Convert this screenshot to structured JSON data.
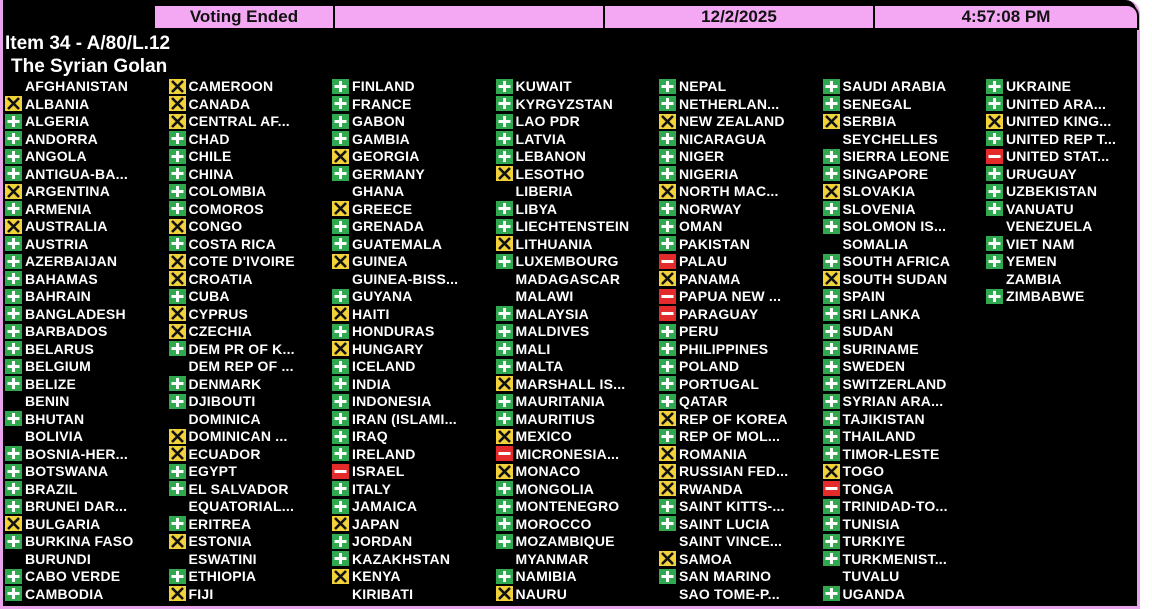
{
  "header": {
    "status": "Voting Ended",
    "date": "12/2/2025",
    "time": "4:57:08 PM"
  },
  "item": "Item 34 - A/80/L.12",
  "title": "The Syrian Golan",
  "columns": [
    [
      {
        "name": "AFGHANISTAN",
        "vote": null
      },
      {
        "name": "ALBANIA",
        "vote": "abstain"
      },
      {
        "name": "ALGERIA",
        "vote": "yes"
      },
      {
        "name": "ANDORRA",
        "vote": "yes"
      },
      {
        "name": "ANGOLA",
        "vote": "yes"
      },
      {
        "name": "ANTIGUA-BA...",
        "vote": "yes"
      },
      {
        "name": "ARGENTINA",
        "vote": "abstain"
      },
      {
        "name": "ARMENIA",
        "vote": "yes"
      },
      {
        "name": "AUSTRALIA",
        "vote": "abstain"
      },
      {
        "name": "AUSTRIA",
        "vote": "yes"
      },
      {
        "name": "AZERBAIJAN",
        "vote": "yes"
      },
      {
        "name": "BAHAMAS",
        "vote": "yes"
      },
      {
        "name": "BAHRAIN",
        "vote": "yes"
      },
      {
        "name": "BANGLADESH",
        "vote": "yes"
      },
      {
        "name": "BARBADOS",
        "vote": "yes"
      },
      {
        "name": "BELARUS",
        "vote": "yes"
      },
      {
        "name": "BELGIUM",
        "vote": "yes"
      },
      {
        "name": "BELIZE",
        "vote": "yes"
      },
      {
        "name": "BENIN",
        "vote": null
      },
      {
        "name": "BHUTAN",
        "vote": "yes"
      },
      {
        "name": "BOLIVIA",
        "vote": null
      },
      {
        "name": "BOSNIA-HER...",
        "vote": "yes"
      },
      {
        "name": "BOTSWANA",
        "vote": "yes"
      },
      {
        "name": "BRAZIL",
        "vote": "yes"
      },
      {
        "name": "BRUNEI DAR...",
        "vote": "yes"
      },
      {
        "name": "BULGARIA",
        "vote": "abstain"
      },
      {
        "name": "BURKINA FASO",
        "vote": "yes"
      },
      {
        "name": "BURUNDI",
        "vote": null
      },
      {
        "name": "CABO VERDE",
        "vote": "yes"
      },
      {
        "name": "CAMBODIA",
        "vote": "yes"
      }
    ],
    [
      {
        "name": "CAMEROON",
        "vote": "abstain"
      },
      {
        "name": "CANADA",
        "vote": "abstain"
      },
      {
        "name": "CENTRAL AF...",
        "vote": "abstain"
      },
      {
        "name": "CHAD",
        "vote": "yes"
      },
      {
        "name": "CHILE",
        "vote": "yes"
      },
      {
        "name": "CHINA",
        "vote": "yes"
      },
      {
        "name": "COLOMBIA",
        "vote": "yes"
      },
      {
        "name": "COMOROS",
        "vote": "yes"
      },
      {
        "name": "CONGO",
        "vote": "abstain"
      },
      {
        "name": "COSTA RICA",
        "vote": "yes"
      },
      {
        "name": "COTE D'IVOIRE",
        "vote": "abstain"
      },
      {
        "name": "CROATIA",
        "vote": "abstain"
      },
      {
        "name": "CUBA",
        "vote": "yes"
      },
      {
        "name": "CYPRUS",
        "vote": "abstain"
      },
      {
        "name": "CZECHIA",
        "vote": "abstain"
      },
      {
        "name": "DEM PR OF K...",
        "vote": "yes"
      },
      {
        "name": "DEM REP OF ...",
        "vote": null
      },
      {
        "name": "DENMARK",
        "vote": "yes"
      },
      {
        "name": "DJIBOUTI",
        "vote": "yes"
      },
      {
        "name": "DOMINICA",
        "vote": null
      },
      {
        "name": "DOMINICAN ...",
        "vote": "abstain"
      },
      {
        "name": "ECUADOR",
        "vote": "abstain"
      },
      {
        "name": "EGYPT",
        "vote": "yes"
      },
      {
        "name": "EL SALVADOR",
        "vote": "yes"
      },
      {
        "name": "EQUATORIAL...",
        "vote": null
      },
      {
        "name": "ERITREA",
        "vote": "yes"
      },
      {
        "name": "ESTONIA",
        "vote": "abstain"
      },
      {
        "name": "ESWATINI",
        "vote": null
      },
      {
        "name": "ETHIOPIA",
        "vote": "yes"
      },
      {
        "name": "FIJI",
        "vote": "abstain"
      }
    ],
    [
      {
        "name": "FINLAND",
        "vote": "yes"
      },
      {
        "name": "FRANCE",
        "vote": "yes"
      },
      {
        "name": "GABON",
        "vote": "yes"
      },
      {
        "name": "GAMBIA",
        "vote": "yes"
      },
      {
        "name": "GEORGIA",
        "vote": "abstain"
      },
      {
        "name": "GERMANY",
        "vote": "yes"
      },
      {
        "name": "GHANA",
        "vote": null
      },
      {
        "name": "GREECE",
        "vote": "abstain"
      },
      {
        "name": "GRENADA",
        "vote": "yes"
      },
      {
        "name": "GUATEMALA",
        "vote": "yes"
      },
      {
        "name": "GUINEA",
        "vote": "abstain"
      },
      {
        "name": "GUINEA-BISS...",
        "vote": null
      },
      {
        "name": "GUYANA",
        "vote": "yes"
      },
      {
        "name": "HAITI",
        "vote": "abstain"
      },
      {
        "name": "HONDURAS",
        "vote": "yes"
      },
      {
        "name": "HUNGARY",
        "vote": "abstain"
      },
      {
        "name": "ICELAND",
        "vote": "yes"
      },
      {
        "name": "INDIA",
        "vote": "yes"
      },
      {
        "name": "INDONESIA",
        "vote": "yes"
      },
      {
        "name": "IRAN (ISLAMI...",
        "vote": "yes"
      },
      {
        "name": "IRAQ",
        "vote": "yes"
      },
      {
        "name": "IRELAND",
        "vote": "yes"
      },
      {
        "name": "ISRAEL",
        "vote": "no"
      },
      {
        "name": "ITALY",
        "vote": "yes"
      },
      {
        "name": "JAMAICA",
        "vote": "yes"
      },
      {
        "name": "JAPAN",
        "vote": "abstain"
      },
      {
        "name": "JORDAN",
        "vote": "yes"
      },
      {
        "name": "KAZAKHSTAN",
        "vote": "yes"
      },
      {
        "name": "KENYA",
        "vote": "abstain"
      },
      {
        "name": "KIRIBATI",
        "vote": null
      }
    ],
    [
      {
        "name": "KUWAIT",
        "vote": "yes"
      },
      {
        "name": "KYRGYZSTAN",
        "vote": "yes"
      },
      {
        "name": "LAO PDR",
        "vote": "yes"
      },
      {
        "name": "LATVIA",
        "vote": "yes"
      },
      {
        "name": "LEBANON",
        "vote": "yes"
      },
      {
        "name": "LESOTHO",
        "vote": "abstain"
      },
      {
        "name": "LIBERIA",
        "vote": null
      },
      {
        "name": "LIBYA",
        "vote": "yes"
      },
      {
        "name": "LIECHTENSTEIN",
        "vote": "yes"
      },
      {
        "name": "LITHUANIA",
        "vote": "abstain"
      },
      {
        "name": "LUXEMBOURG",
        "vote": "yes"
      },
      {
        "name": "MADAGASCAR",
        "vote": null
      },
      {
        "name": "MALAWI",
        "vote": null
      },
      {
        "name": "MALAYSIA",
        "vote": "yes"
      },
      {
        "name": "MALDIVES",
        "vote": "yes"
      },
      {
        "name": "MALI",
        "vote": "yes"
      },
      {
        "name": "MALTA",
        "vote": "yes"
      },
      {
        "name": "MARSHALL IS...",
        "vote": "abstain"
      },
      {
        "name": "MAURITANIA",
        "vote": "yes"
      },
      {
        "name": "MAURITIUS",
        "vote": "yes"
      },
      {
        "name": "MEXICO",
        "vote": "abstain"
      },
      {
        "name": "MICRONESIA...",
        "vote": "no"
      },
      {
        "name": "MONACO",
        "vote": "abstain"
      },
      {
        "name": "MONGOLIA",
        "vote": "yes"
      },
      {
        "name": "MONTENEGRO",
        "vote": "yes"
      },
      {
        "name": "MOROCCO",
        "vote": "yes"
      },
      {
        "name": "MOZAMBIQUE",
        "vote": "yes"
      },
      {
        "name": "MYANMAR",
        "vote": null
      },
      {
        "name": "NAMIBIA",
        "vote": "yes"
      },
      {
        "name": "NAURU",
        "vote": "abstain"
      }
    ],
    [
      {
        "name": "NEPAL",
        "vote": "yes"
      },
      {
        "name": "NETHERLAN...",
        "vote": "yes"
      },
      {
        "name": "NEW ZEALAND",
        "vote": "abstain"
      },
      {
        "name": "NICARAGUA",
        "vote": "yes"
      },
      {
        "name": "NIGER",
        "vote": "yes"
      },
      {
        "name": "NIGERIA",
        "vote": "yes"
      },
      {
        "name": "NORTH MAC...",
        "vote": "abstain"
      },
      {
        "name": "NORWAY",
        "vote": "yes"
      },
      {
        "name": "OMAN",
        "vote": "yes"
      },
      {
        "name": "PAKISTAN",
        "vote": "yes"
      },
      {
        "name": "PALAU",
        "vote": "no"
      },
      {
        "name": "PANAMA",
        "vote": "abstain"
      },
      {
        "name": "PAPUA NEW ...",
        "vote": "no"
      },
      {
        "name": "PARAGUAY",
        "vote": "no"
      },
      {
        "name": "PERU",
        "vote": "yes"
      },
      {
        "name": "PHILIPPINES",
        "vote": "yes"
      },
      {
        "name": "POLAND",
        "vote": "yes"
      },
      {
        "name": "PORTUGAL",
        "vote": "yes"
      },
      {
        "name": "QATAR",
        "vote": "yes"
      },
      {
        "name": "REP OF KOREA",
        "vote": "abstain"
      },
      {
        "name": "REP OF MOL...",
        "vote": "yes"
      },
      {
        "name": "ROMANIA",
        "vote": "abstain"
      },
      {
        "name": "RUSSIAN FED...",
        "vote": "abstain"
      },
      {
        "name": "RWANDA",
        "vote": "abstain"
      },
      {
        "name": "SAINT KITTS-...",
        "vote": "yes"
      },
      {
        "name": "SAINT LUCIA",
        "vote": "yes"
      },
      {
        "name": "SAINT VINCE...",
        "vote": null
      },
      {
        "name": "SAMOA",
        "vote": "abstain"
      },
      {
        "name": "SAN MARINO",
        "vote": "yes"
      },
      {
        "name": "SAO TOME-P...",
        "vote": null
      }
    ],
    [
      {
        "name": "SAUDI ARABIA",
        "vote": "yes"
      },
      {
        "name": "SENEGAL",
        "vote": "yes"
      },
      {
        "name": "SERBIA",
        "vote": "abstain"
      },
      {
        "name": "SEYCHELLES",
        "vote": null
      },
      {
        "name": "SIERRA LEONE",
        "vote": "yes"
      },
      {
        "name": "SINGAPORE",
        "vote": "yes"
      },
      {
        "name": "SLOVAKIA",
        "vote": "abstain"
      },
      {
        "name": "SLOVENIA",
        "vote": "yes"
      },
      {
        "name": "SOLOMON IS...",
        "vote": "yes"
      },
      {
        "name": "SOMALIA",
        "vote": null
      },
      {
        "name": "SOUTH AFRICA",
        "vote": "yes"
      },
      {
        "name": "SOUTH SUDAN",
        "vote": "abstain"
      },
      {
        "name": "SPAIN",
        "vote": "yes"
      },
      {
        "name": "SRI LANKA",
        "vote": "yes"
      },
      {
        "name": "SUDAN",
        "vote": "yes"
      },
      {
        "name": "SURINAME",
        "vote": "yes"
      },
      {
        "name": "SWEDEN",
        "vote": "yes"
      },
      {
        "name": "SWITZERLAND",
        "vote": "yes"
      },
      {
        "name": "SYRIAN ARA...",
        "vote": "yes"
      },
      {
        "name": "TAJIKISTAN",
        "vote": "yes"
      },
      {
        "name": "THAILAND",
        "vote": "yes"
      },
      {
        "name": "TIMOR-LESTE",
        "vote": "yes"
      },
      {
        "name": "TOGO",
        "vote": "abstain"
      },
      {
        "name": "TONGA",
        "vote": "no"
      },
      {
        "name": "TRINIDAD-TO...",
        "vote": "yes"
      },
      {
        "name": "TUNISIA",
        "vote": "yes"
      },
      {
        "name": "TURKIYE",
        "vote": "yes"
      },
      {
        "name": "TURKMENIST...",
        "vote": "yes"
      },
      {
        "name": "TUVALU",
        "vote": null
      },
      {
        "name": "UGANDA",
        "vote": "yes"
      }
    ],
    [
      {
        "name": "UKRAINE",
        "vote": "yes"
      },
      {
        "name": "UNITED ARA...",
        "vote": "yes"
      },
      {
        "name": "UNITED KING...",
        "vote": "abstain"
      },
      {
        "name": "UNITED REP T...",
        "vote": "yes"
      },
      {
        "name": "UNITED STAT...",
        "vote": "no"
      },
      {
        "name": "URUGUAY",
        "vote": "yes"
      },
      {
        "name": "UZBEKISTAN",
        "vote": "yes"
      },
      {
        "name": "VANUATU",
        "vote": "yes"
      },
      {
        "name": "VENEZUELA",
        "vote": null
      },
      {
        "name": "VIET NAM",
        "vote": "yes"
      },
      {
        "name": "YEMEN",
        "vote": "yes"
      },
      {
        "name": "ZAMBIA",
        "vote": null
      },
      {
        "name": "ZIMBABWE",
        "vote": "yes"
      }
    ]
  ]
}
